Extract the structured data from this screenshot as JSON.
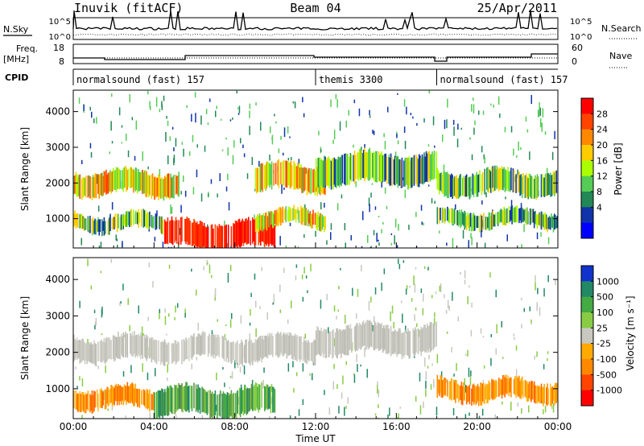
{
  "header": {
    "station": "Inuvik (fitACF)",
    "beam": "Beam 04",
    "date": "25/Apr/2011"
  },
  "top_panels": {
    "nsky_label": "N.Sky",
    "nsky_ticks": [
      "10^5",
      "10^0"
    ],
    "nsearch_label": "N.Search",
    "nsearch_ticks": [
      "10^5",
      "10^0"
    ],
    "freq_label_1": "Freq.",
    "freq_label_2": "[MHz]",
    "freq_ticks": [
      "18",
      "8"
    ],
    "nave_label": "Nave",
    "nave_ticks": [
      "60",
      "0"
    ],
    "cpid_label": "CPID",
    "cpid_segments": [
      {
        "start": 0,
        "end": 12,
        "label": "normalsound (fast) 157"
      },
      {
        "start": 12,
        "end": 18,
        "label": "themis 3300"
      },
      {
        "start": 18,
        "end": 24,
        "label": "normalsound (fast) 157"
      }
    ]
  },
  "chart_data": [
    {
      "type": "heatmap",
      "title": "",
      "ylabel": "Slant Range [km]",
      "xlim": [
        0,
        24
      ],
      "ylim": [
        180,
        4600
      ],
      "yticks": [
        1000,
        2000,
        3000,
        4000
      ],
      "colorbar": {
        "label": "Power [dB]",
        "ticks": [
          "28",
          "24",
          "20",
          "16",
          "12",
          "8",
          "4"
        ],
        "colors": [
          "#ff0000",
          "#ff4400",
          "#ff8800",
          "#ffcc00",
          "#aaff00",
          "#55cc55",
          "#228855",
          "#1133aa",
          "#0000ff"
        ]
      },
      "bands": [
        {
          "t0": 0.0,
          "t1": 5.2,
          "r0": 1700,
          "r1": 2300,
          "value": "high"
        },
        {
          "t0": 0.0,
          "t1": 4.5,
          "r0": 700,
          "r1": 1100,
          "value": "mid"
        },
        {
          "t0": 4.5,
          "t1": 10.0,
          "r0": 200,
          "r1": 900,
          "value": "max"
        },
        {
          "t0": 9.0,
          "t1": 12.5,
          "r0": 800,
          "r1": 1200,
          "value": "high"
        },
        {
          "t0": 9.0,
          "t1": 12.5,
          "r0": 1800,
          "r1": 2500,
          "value": "high"
        },
        {
          "t0": 12.0,
          "t1": 18.0,
          "r0": 2000,
          "r1": 2800,
          "value": "mid"
        },
        {
          "t0": 18.0,
          "t1": 24.0,
          "r0": 1700,
          "r1": 2300,
          "value": "mid"
        },
        {
          "t0": 18.0,
          "t1": 24.0,
          "r0": 800,
          "r1": 1200,
          "value": "mid"
        }
      ]
    },
    {
      "type": "heatmap",
      "title": "",
      "ylabel": "Slant Range [km]",
      "xlabel": "Time UT",
      "xlim": [
        0,
        24
      ],
      "ylim": [
        180,
        4600
      ],
      "yticks": [
        1000,
        2000,
        3000,
        4000
      ],
      "xticks": [
        "00:00",
        "04:00",
        "08:00",
        "12:00",
        "16:00",
        "20:00",
        "00:00"
      ],
      "colorbar": {
        "label": "Velocity [m s⁻¹]",
        "ticks": [
          "1000",
          "500",
          "100",
          "25",
          "-25",
          "-100",
          "-500",
          "-1000"
        ],
        "colors": [
          "#1133cc",
          "#228866",
          "#44aa44",
          "#88cc44",
          "#c8c8c0",
          "#ffaa00",
          "#ff8800",
          "#ff4400",
          "#ff0000"
        ]
      },
      "bands": [
        {
          "t0": 0.0,
          "t1": 12.0,
          "r0": 1800,
          "r1": 2400,
          "value": "ground"
        },
        {
          "t0": 0.0,
          "t1": 4.0,
          "r0": 500,
          "r1": 1000,
          "value": "negative"
        },
        {
          "t0": 4.0,
          "t1": 10.0,
          "r0": 300,
          "r1": 1000,
          "value": "positive"
        },
        {
          "t0": 12.0,
          "t1": 18.0,
          "r0": 2000,
          "r1": 2700,
          "value": "ground"
        },
        {
          "t0": 18.0,
          "t1": 24.0,
          "r0": 700,
          "r1": 1200,
          "value": "negative"
        }
      ]
    }
  ]
}
